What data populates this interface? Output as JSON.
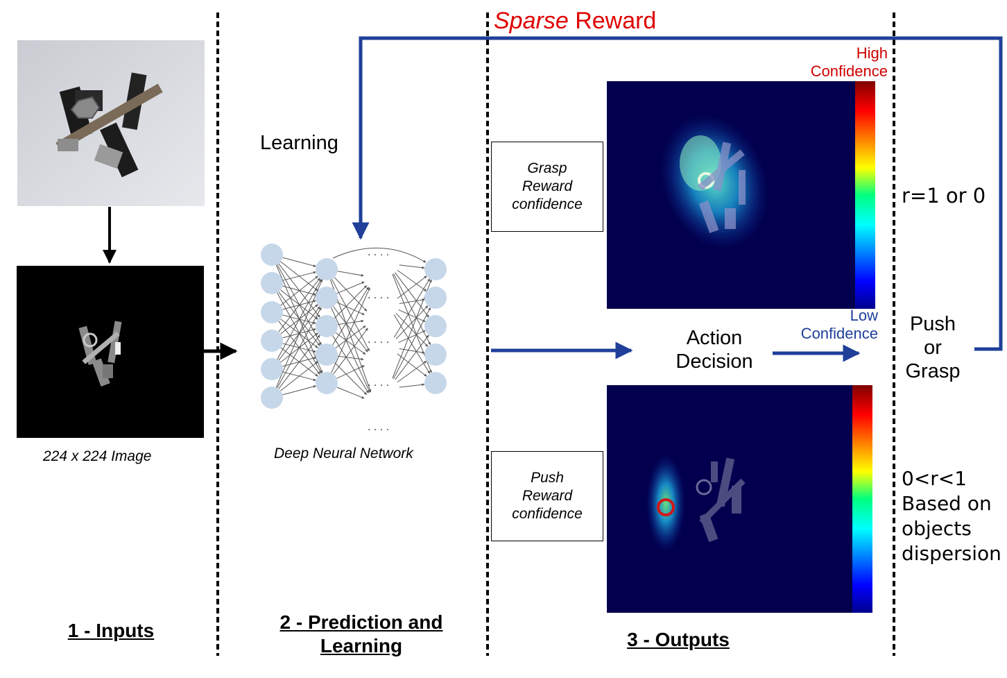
{
  "top": {
    "sparse_word": "Sparse",
    "reward_word": "Reward"
  },
  "inputs": {
    "caption": "224 x 224 Image",
    "section_title": "1 - Inputs"
  },
  "learning": {
    "label": "Learning",
    "network_caption": "Deep Neural Network",
    "section_title_line1": "2 - Prediction and",
    "section_title_line2": "Learning"
  },
  "outputs": {
    "grasp_box": {
      "line1": "Grasp",
      "line2": "Reward",
      "line3": "confidence"
    },
    "push_box": {
      "line1": "Push",
      "line2": "Reward",
      "line3": "confidence"
    },
    "high_confidence": {
      "line1": "High",
      "line2": "Confidence"
    },
    "low_confidence": {
      "line1": "Low",
      "line2": "Confidence"
    },
    "action_decision": {
      "line1": "Action",
      "line2": "Decision"
    },
    "section_title": "3 - Outputs"
  },
  "right": {
    "grasp_reward": "r=1 or 0",
    "push_or_grasp": {
      "line1": "Push",
      "line2": "or",
      "line3": "Grasp"
    },
    "push_reward": {
      "line1": "0<r<1",
      "line2": "Based on",
      "line3": "objects",
      "line4": "dispersion"
    }
  },
  "colors": {
    "feedback_arrow": "#1f3f99",
    "sparse_reward": "#e00000",
    "low_conf": "#1f3f99",
    "high_conf": "#d00000",
    "heatmap_bg": "#02004e"
  }
}
